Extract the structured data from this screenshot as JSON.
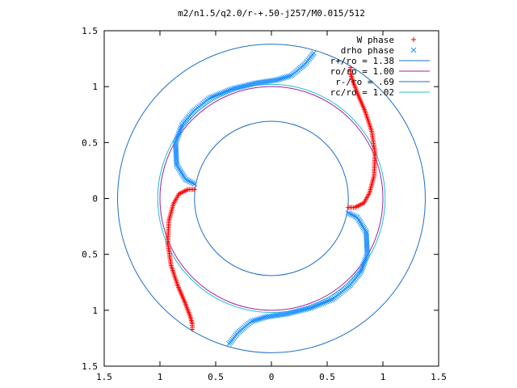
{
  "chart_data": {
    "type": "scatter",
    "title": "m2/n1.5/q2.0/r-+.50-j257/M0.015/512",
    "xlabel": "",
    "ylabel": "",
    "xlim": [
      -1.5,
      1.5
    ],
    "ylim": [
      -1.5,
      1.5
    ],
    "x_tick_labels": [
      "1.5",
      "1",
      "0.5",
      "0",
      "0.5",
      "1",
      "1.5"
    ],
    "y_tick_labels": [
      "1.5",
      "1",
      "0.5",
      "0",
      "0.5",
      "1",
      "1.5"
    ],
    "tick_values": [
      -1.5,
      -1,
      -0.5,
      0,
      0.5,
      1,
      1.5
    ],
    "legend_position": "top-right",
    "circles": [
      {
        "name": "r+/ro = 1.38",
        "radius": 1.38,
        "color": "#1f6fc5"
      },
      {
        "name": "ro/ro = 1.00",
        "radius": 1.0,
        "color": "#a020a0"
      },
      {
        "name": "r-/ro = .69",
        "radius": 0.69,
        "color": "#1f6fc5"
      },
      {
        "name": "rc/ro = 1.02",
        "radius": 1.02,
        "color": "#20c0d0"
      }
    ],
    "series": [
      {
        "name": "W phase",
        "marker": "+",
        "color": "#ff0000",
        "arms": [
          [
            [
              -0.69,
              0.08
            ],
            [
              -0.75,
              0.08
            ],
            [
              -0.83,
              0.04
            ],
            [
              -0.88,
              -0.05
            ],
            [
              -0.92,
              -0.2
            ],
            [
              -0.93,
              -0.4
            ],
            [
              -0.9,
              -0.6
            ],
            [
              -0.84,
              -0.78
            ],
            [
              -0.78,
              -0.92
            ],
            [
              -0.73,
              -1.05
            ],
            [
              -0.71,
              -1.12
            ],
            [
              -0.71,
              -1.17
            ]
          ],
          [
            [
              0.69,
              -0.08
            ],
            [
              0.75,
              -0.08
            ],
            [
              0.83,
              -0.04
            ],
            [
              0.88,
              0.05
            ],
            [
              0.92,
              0.2
            ],
            [
              0.93,
              0.4
            ],
            [
              0.9,
              0.6
            ],
            [
              0.84,
              0.78
            ],
            [
              0.78,
              0.92
            ],
            [
              0.73,
              1.05
            ],
            [
              0.71,
              1.12
            ],
            [
              0.71,
              1.17
            ]
          ]
        ]
      },
      {
        "name": "drho phase",
        "marker": "x",
        "color": "#1e90ff",
        "arms": [
          [
            [
              -0.69,
              0.13
            ],
            [
              -0.77,
              0.17
            ],
            [
              -0.85,
              0.3
            ],
            [
              -0.86,
              0.5
            ],
            [
              -0.8,
              0.66
            ],
            [
              -0.7,
              0.78
            ],
            [
              -0.55,
              0.9
            ],
            [
              -0.35,
              0.98
            ],
            [
              -0.15,
              1.03
            ],
            [
              0.05,
              1.06
            ],
            [
              0.18,
              1.1
            ],
            [
              0.3,
              1.2
            ],
            [
              0.38,
              1.3
            ]
          ],
          [
            [
              0.69,
              -0.13
            ],
            [
              0.77,
              -0.17
            ],
            [
              0.85,
              -0.3
            ],
            [
              0.86,
              -0.5
            ],
            [
              0.8,
              -0.66
            ],
            [
              0.7,
              -0.78
            ],
            [
              0.55,
              -0.9
            ],
            [
              0.35,
              -0.98
            ],
            [
              0.15,
              -1.03
            ],
            [
              -0.05,
              -1.06
            ],
            [
              -0.18,
              -1.1
            ],
            [
              -0.3,
              -1.2
            ],
            [
              -0.38,
              -1.3
            ]
          ]
        ]
      }
    ]
  }
}
